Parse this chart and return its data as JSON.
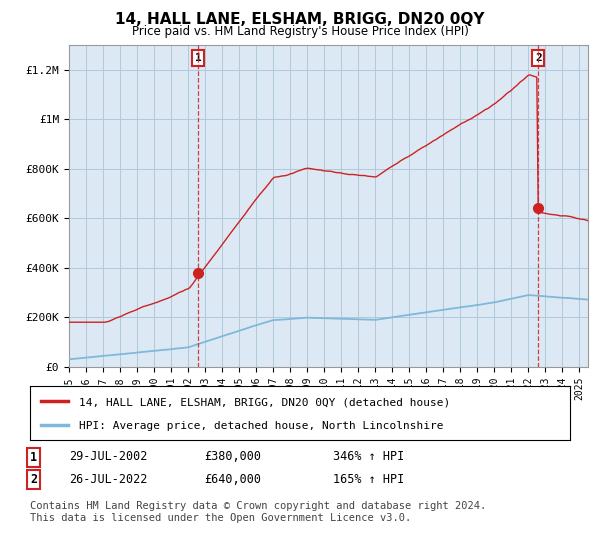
{
  "title": "14, HALL LANE, ELSHAM, BRIGG, DN20 0QY",
  "subtitle": "Price paid vs. HM Land Registry's House Price Index (HPI)",
  "xlim_start": 1995.0,
  "xlim_end": 2025.5,
  "ylim": [
    0,
    1300000
  ],
  "yticks": [
    0,
    200000,
    400000,
    600000,
    800000,
    1000000,
    1200000
  ],
  "ytick_labels": [
    "£0",
    "£200K",
    "£400K",
    "£600K",
    "£800K",
    "£1M",
    "£1.2M"
  ],
  "transaction1_date": 2002.58,
  "transaction1_price": 380000,
  "transaction1_label": "1",
  "transaction2_date": 2022.58,
  "transaction2_price": 640000,
  "transaction2_label": "2",
  "legend_line1": "14, HALL LANE, ELSHAM, BRIGG, DN20 0QY (detached house)",
  "legend_line2": "HPI: Average price, detached house, North Lincolnshire",
  "footnote": "Contains HM Land Registry data © Crown copyright and database right 2024.\nThis data is licensed under the Open Government Licence v3.0.",
  "hpi_color": "#7fb8d8",
  "price_color": "#cc2222",
  "background_color": "#ffffff",
  "plot_bg_color": "#dce9f5",
  "grid_color": "#b0c8dc"
}
